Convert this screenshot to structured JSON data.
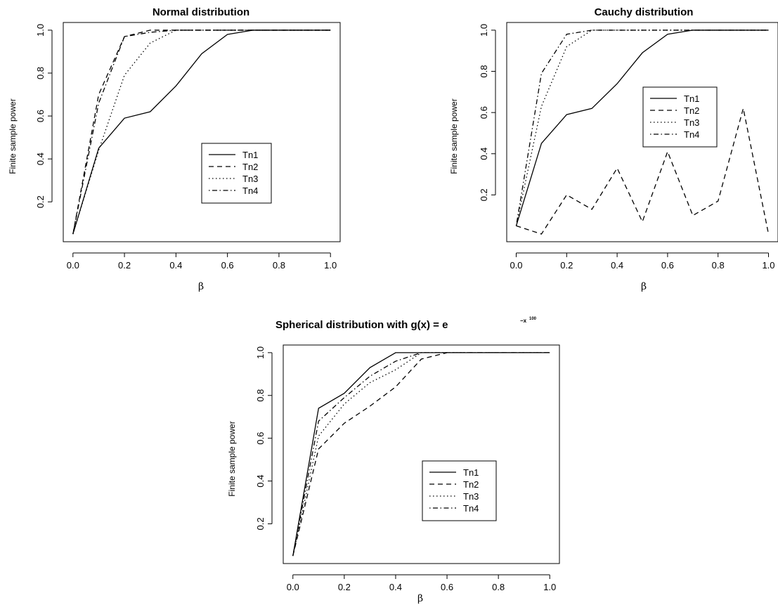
{
  "chart_data": [
    {
      "type": "line",
      "title": "Normal distribution",
      "xlabel": "β",
      "ylabel": "Finite sample power",
      "x": [
        0.0,
        0.1,
        0.2,
        0.3,
        0.4,
        0.5,
        0.6,
        0.7,
        0.8,
        0.9,
        1.0
      ],
      "xlim": [
        0.0,
        1.0
      ],
      "ylim": [
        0.05,
        1.0
      ],
      "xticks": [
        "0.0",
        "0.2",
        "0.4",
        "0.6",
        "0.8",
        "1.0"
      ],
      "yticks": [
        "0.2",
        "0.4",
        "0.6",
        "0.8",
        "1.0"
      ],
      "legend_position": "center-right",
      "series": [
        {
          "name": "Tn1",
          "style": "solid",
          "values": [
            0.05,
            0.45,
            0.59,
            0.62,
            0.74,
            0.89,
            0.98,
            1.0,
            1.0,
            1.0,
            1.0
          ]
        },
        {
          "name": "Tn2",
          "style": "dashed",
          "values": [
            0.05,
            0.7,
            0.97,
            1.0,
            1.0,
            1.0,
            1.0,
            1.0,
            1.0,
            1.0,
            1.0
          ]
        },
        {
          "name": "Tn3",
          "style": "dotted",
          "values": [
            0.05,
            0.44,
            0.79,
            0.94,
            1.0,
            1.0,
            1.0,
            1.0,
            1.0,
            1.0,
            1.0
          ]
        },
        {
          "name": "Tn4",
          "style": "dotdash",
          "values": [
            0.05,
            0.66,
            0.97,
            0.99,
            1.0,
            1.0,
            1.0,
            1.0,
            1.0,
            1.0,
            1.0
          ]
        }
      ]
    },
    {
      "type": "line",
      "title": "Cauchy distribution",
      "xlabel": "β",
      "ylabel": "Finite sample power",
      "x": [
        0.0,
        0.1,
        0.2,
        0.3,
        0.4,
        0.5,
        0.6,
        0.7,
        0.8,
        0.9,
        1.0
      ],
      "xlim": [
        0.0,
        1.0
      ],
      "ylim": [
        0.01,
        1.0
      ],
      "xticks": [
        "0.0",
        "0.2",
        "0.4",
        "0.6",
        "0.8",
        "1.0"
      ],
      "yticks": [
        "0.2",
        "0.4",
        "0.6",
        "0.8",
        "1.0"
      ],
      "legend_position": "top-right",
      "series": [
        {
          "name": "Tn1",
          "style": "solid",
          "values": [
            0.05,
            0.45,
            0.59,
            0.62,
            0.74,
            0.89,
            0.98,
            1.0,
            1.0,
            1.0,
            1.0
          ]
        },
        {
          "name": "Tn2",
          "style": "dashed",
          "values": [
            0.05,
            0.01,
            0.2,
            0.13,
            0.33,
            0.07,
            0.41,
            0.1,
            0.17,
            0.62,
            0.01
          ]
        },
        {
          "name": "Tn3",
          "style": "dotted",
          "values": [
            0.05,
            0.63,
            0.92,
            1.0,
            1.0,
            1.0,
            1.0,
            1.0,
            1.0,
            1.0,
            1.0
          ]
        },
        {
          "name": "Tn4",
          "style": "dotdash",
          "values": [
            0.05,
            0.79,
            0.98,
            1.0,
            1.0,
            1.0,
            1.0,
            1.0,
            1.0,
            1.0,
            1.0
          ]
        }
      ]
    },
    {
      "type": "line",
      "title": "Spherical distribution with g(x) = e",
      "title_exponent": "−x",
      "title_exponent_power": "100",
      "xlabel": "β",
      "ylabel": "Finite sample power",
      "x": [
        0.0,
        0.1,
        0.2,
        0.3,
        0.4,
        0.5,
        0.6,
        0.7,
        0.8,
        0.9,
        1.0
      ],
      "xlim": [
        0.0,
        1.0
      ],
      "ylim": [
        0.05,
        1.0
      ],
      "xticks": [
        "0.0",
        "0.2",
        "0.4",
        "0.6",
        "0.8",
        "1.0"
      ],
      "yticks": [
        "0.2",
        "0.4",
        "0.6",
        "0.8",
        "1.0"
      ],
      "legend_position": "center-right",
      "series": [
        {
          "name": "Tn1",
          "style": "solid",
          "values": [
            0.05,
            0.74,
            0.81,
            0.93,
            1.0,
            1.0,
            1.0,
            1.0,
            1.0,
            1.0,
            1.0
          ]
        },
        {
          "name": "Tn2",
          "style": "dashed",
          "values": [
            0.05,
            0.55,
            0.67,
            0.75,
            0.84,
            0.97,
            1.0,
            1.0,
            1.0,
            1.0,
            1.0
          ]
        },
        {
          "name": "Tn3",
          "style": "dotted",
          "values": [
            0.05,
            0.61,
            0.76,
            0.86,
            0.92,
            1.0,
            1.0,
            1.0,
            1.0,
            1.0,
            1.0
          ]
        },
        {
          "name": "Tn4",
          "style": "dotdash",
          "values": [
            0.05,
            0.68,
            0.79,
            0.89,
            0.96,
            1.0,
            1.0,
            1.0,
            1.0,
            1.0,
            1.0
          ]
        }
      ]
    }
  ]
}
